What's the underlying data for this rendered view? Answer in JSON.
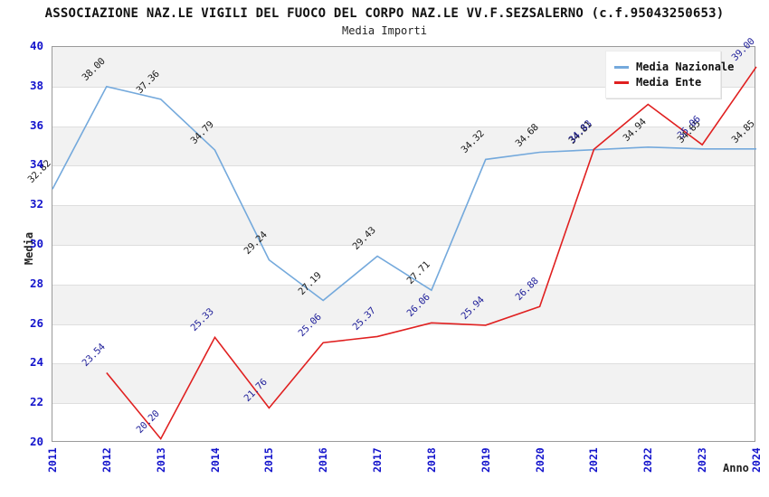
{
  "header": {
    "title": "ASSOCIAZIONE NAZ.LE VIGILI DEL FUOCO DEL CORPO NAZ.LE VV.F.SEZSALERNO (c.f.95043250653)",
    "subtitle": "Media Importi"
  },
  "axes": {
    "y_title": "Media",
    "x_title": "Anno",
    "y_ticks": [
      20,
      22,
      24,
      26,
      28,
      30,
      32,
      34,
      36,
      38,
      40
    ],
    "gray_band_lower_bounds": [
      22,
      26,
      30,
      34,
      38
    ]
  },
  "colors": {
    "nazionale_line": "#74a9dc",
    "ente_line": "#e02020",
    "nazionale_label": "#1a1a1a",
    "ente_label": "#20209a",
    "tick_text": "#1414cc",
    "band": "#f2f2f2",
    "gridline": "#dedede"
  },
  "legend": {
    "items": [
      {
        "label": "Media Nazionale",
        "color": "#74a9dc"
      },
      {
        "label": "Media Ente",
        "color": "#e02020"
      }
    ]
  },
  "chart_data": {
    "type": "line",
    "title": "Media Importi",
    "xlabel": "Anno",
    "ylabel": "Media",
    "ylim": [
      20,
      40
    ],
    "grid": true,
    "legend_position": "top-right",
    "categories": [
      "2011",
      "2012",
      "2013",
      "2014",
      "2015",
      "2016",
      "2017",
      "2018",
      "2019",
      "2020",
      "2021",
      "2022",
      "2023",
      "2024"
    ],
    "series": [
      {
        "name": "Media Nazionale",
        "color": "#74a9dc",
        "label_color": "#1a1a1a",
        "start_index": 0,
        "values": [
          32.82,
          38.0,
          37.36,
          34.79,
          29.24,
          27.19,
          29.43,
          27.71,
          34.32,
          34.68,
          34.81,
          34.94,
          34.85,
          34.85
        ],
        "hidden_label_indices": []
      },
      {
        "name": "Media Ente",
        "color": "#e02020",
        "label_color": "#20209a",
        "start_index": 1,
        "values": [
          23.54,
          20.2,
          25.33,
          21.76,
          25.06,
          25.37,
          26.06,
          25.94,
          26.88,
          34.83,
          37.1,
          35.06,
          39.0
        ],
        "hidden_label_indices": [
          10
        ]
      }
    ]
  }
}
